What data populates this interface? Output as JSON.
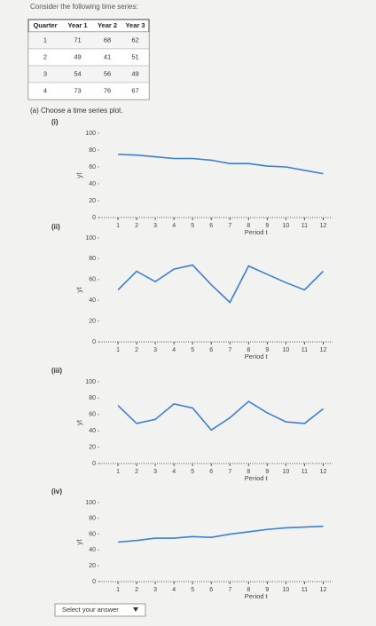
{
  "header": "Consider the following time series:",
  "table": {
    "columns": [
      "Quarter",
      "Year 1",
      "Year 2",
      "Year 3"
    ],
    "rows": [
      [
        1,
        71,
        68,
        62
      ],
      [
        2,
        49,
        41,
        51
      ],
      [
        3,
        54,
        56,
        49
      ],
      [
        4,
        73,
        76,
        67
      ]
    ]
  },
  "question": "(a) Choose a time series plot.",
  "chart_data": [
    {
      "type": "line",
      "label": "(i)",
      "x_label": "Period t",
      "y_label": "yt",
      "color": "#3b7fd4",
      "x": [
        1,
        2,
        3,
        4,
        5,
        6,
        7,
        8,
        9,
        10,
        11,
        12
      ],
      "values": [
        75,
        74,
        72,
        70,
        70,
        68,
        64,
        64,
        61,
        60,
        56,
        52
      ],
      "xlim": [
        0,
        12.5
      ],
      "xticks": [
        1,
        2,
        3,
        4,
        5,
        6,
        7,
        8,
        9,
        10,
        11,
        12
      ],
      "ylim": [
        0,
        100
      ],
      "yticks": [
        0,
        20,
        40,
        60,
        80,
        100
      ]
    },
    {
      "type": "line",
      "label": "(ii)",
      "x_label": "Period t",
      "y_label": "yt",
      "color": "#3b7fd4",
      "x": [
        1,
        2,
        3,
        4,
        5,
        6,
        7,
        8,
        9,
        10,
        11,
        12
      ],
      "values": [
        50,
        68,
        58,
        70,
        74,
        55,
        38,
        73,
        65,
        57,
        50,
        68
      ],
      "xlim": [
        0,
        12.5
      ],
      "xticks": [
        1,
        2,
        3,
        4,
        5,
        6,
        7,
        8,
        9,
        10,
        11,
        12
      ],
      "ylim": [
        0,
        100
      ],
      "yticks": [
        0,
        20,
        40,
        60,
        80,
        100
      ]
    },
    {
      "type": "line",
      "label": "(iii)",
      "x_label": "Period t",
      "y_label": "yt",
      "color": "#3b7fd4",
      "x": [
        1,
        2,
        3,
        4,
        5,
        6,
        7,
        8,
        9,
        10,
        11,
        12
      ],
      "values": [
        71,
        49,
        54,
        73,
        68,
        41,
        56,
        76,
        62,
        51,
        49,
        67
      ],
      "xlim": [
        0,
        12.5
      ],
      "xticks": [
        1,
        2,
        3,
        4,
        5,
        6,
        7,
        8,
        9,
        10,
        11,
        12
      ],
      "ylim": [
        0,
        100
      ],
      "yticks": [
        0,
        20,
        40,
        60,
        80,
        100
      ]
    },
    {
      "type": "line",
      "label": "(iv)",
      "x_label": "Period t",
      "y_label": "yt",
      "color": "#3b7fd4",
      "x": [
        1,
        2,
        3,
        4,
        5,
        6,
        7,
        8,
        9,
        10,
        11,
        12
      ],
      "values": [
        50,
        52,
        55,
        55,
        57,
        56,
        60,
        63,
        66,
        68,
        69,
        70
      ],
      "xlim": [
        0,
        12.5
      ],
      "xticks": [
        1,
        2,
        3,
        4,
        5,
        6,
        7,
        8,
        9,
        10,
        11,
        12
      ],
      "ylim": [
        0,
        100
      ],
      "yticks": [
        0,
        20,
        40,
        60,
        80,
        100
      ]
    }
  ],
  "dropdown": "Select your answer"
}
